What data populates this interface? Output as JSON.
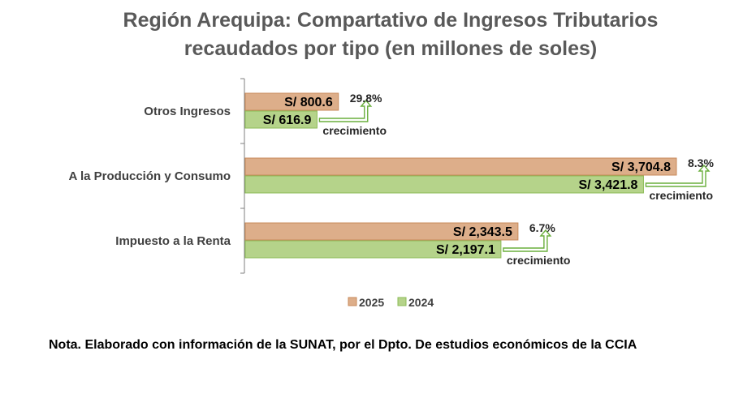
{
  "title": [
    "Región Arequipa: Compartativo de Ingresos Tributarios",
    "recaudados por tipo (en millones de soles)"
  ],
  "note": "Nota. Elaborado con información de la SUNAT, por el Dpto. De estudios económicos de la CCIA",
  "colors": {
    "s2025": "#DDAE8A",
    "s2025_border": "#C8895A",
    "s2024": "#B5D38A",
    "s2024_border": "#8BBB55",
    "arrow": "#6AAF3D"
  },
  "chart_data": {
    "type": "bar",
    "orientation": "horizontal",
    "categories": [
      "Otros Ingresos",
      "A la Producción y Consumo",
      "Impuesto a la Renta"
    ],
    "series": [
      {
        "name": "2025",
        "values": [
          800.6,
          3704.8,
          2343.5
        ],
        "labels": [
          "S/ 800.6",
          "S/ 3,704.8",
          "S/ 2,343.5"
        ]
      },
      {
        "name": "2024",
        "values": [
          616.9,
          3421.8,
          2197.1
        ],
        "labels": [
          "S/ 616.9",
          "S/ 3,421.8",
          "S/ 2,197.1"
        ]
      }
    ],
    "growth": [
      {
        "pct": "29.8%",
        "word": "crecimiento"
      },
      {
        "pct": "8.3%",
        "word": "crecimiento"
      },
      {
        "pct": "6.7%",
        "word": "crecimiento"
      }
    ],
    "legend": [
      "2025",
      "2024"
    ],
    "legend_position": "bottom",
    "xlim": [
      0,
      3800
    ],
    "grid": false
  }
}
